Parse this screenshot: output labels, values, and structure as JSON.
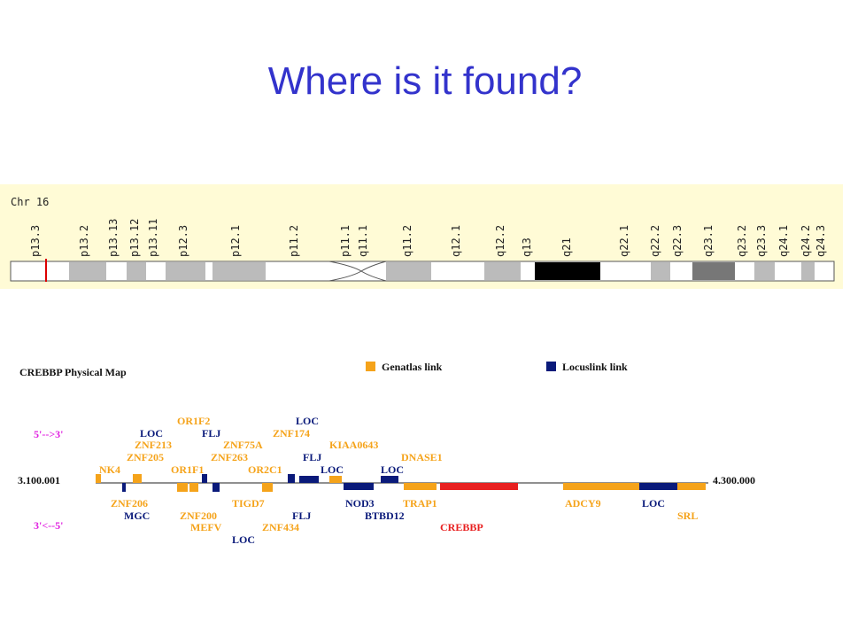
{
  "title": "Where is it found?",
  "ideogram": {
    "chromosome": "Chr 16",
    "bands": [
      "p13.3",
      "p13.2",
      "p13.13",
      "p13.12",
      "p13.11",
      "p12.3",
      "p12.1",
      "p11.2",
      "p11.1",
      "q11.1",
      "q11.2",
      "q12.1",
      "q12.2",
      "q13",
      "q21",
      "q22.1",
      "q22.2",
      "q22.3",
      "q23.1",
      "q23.2",
      "q23.3",
      "q24.1",
      "q24.2",
      "q24.3"
    ]
  },
  "physical_map": {
    "title": "CREBBP Physical Map",
    "legend": [
      {
        "label": "Genatlas link",
        "color": "#f5a31a"
      },
      {
        "label": "Locuslink link",
        "color": "#0a1a7a"
      }
    ],
    "strand_forward": "5'-->3'",
    "strand_reverse": "3'<--5'",
    "start": "3.100.001",
    "end": "4.300.000",
    "genes": [
      {
        "label": "OR1F2",
        "color": "#f5a31a"
      },
      {
        "label": "LOC",
        "color": "#0a1a7a"
      },
      {
        "label": "LOC",
        "color": "#0a1a7a"
      },
      {
        "label": "FLJ",
        "color": "#0a1a7a"
      },
      {
        "label": "ZNF174",
        "color": "#f5a31a"
      },
      {
        "label": "ZNF213",
        "color": "#f5a31a"
      },
      {
        "label": "ZNF75A",
        "color": "#f5a31a"
      },
      {
        "label": "KIAA0643",
        "color": "#f5a31a"
      },
      {
        "label": "ZNF205",
        "color": "#f5a31a"
      },
      {
        "label": "ZNF263",
        "color": "#f5a31a"
      },
      {
        "label": "FLJ",
        "color": "#0a1a7a"
      },
      {
        "label": "DNASE1",
        "color": "#f5a31a"
      },
      {
        "label": "NK4",
        "color": "#f5a31a"
      },
      {
        "label": "OR1F1",
        "color": "#f5a31a"
      },
      {
        "label": "OR2C1",
        "color": "#f5a31a"
      },
      {
        "label": "LOC",
        "color": "#0a1a7a"
      },
      {
        "label": "LOC",
        "color": "#0a1a7a"
      },
      {
        "label": "ZNF206",
        "color": "#f5a31a"
      },
      {
        "label": "TIGD7",
        "color": "#f5a31a"
      },
      {
        "label": "NOD3",
        "color": "#0a1a7a"
      },
      {
        "label": "TRAP1",
        "color": "#f5a31a"
      },
      {
        "label": "ADCY9",
        "color": "#f5a31a"
      },
      {
        "label": "LOC",
        "color": "#0a1a7a"
      },
      {
        "label": "MGC",
        "color": "#0a1a7a"
      },
      {
        "label": "ZNF200",
        "color": "#f5a31a"
      },
      {
        "label": "FLJ",
        "color": "#0a1a7a"
      },
      {
        "label": "BTBD12",
        "color": "#0a1a7a"
      },
      {
        "label": "SRL",
        "color": "#f5a31a"
      },
      {
        "label": "MEFV",
        "color": "#f5a31a"
      },
      {
        "label": "ZNF434",
        "color": "#f5a31a"
      },
      {
        "label": "CREBBP",
        "color": "#e82020"
      },
      {
        "label": "LOC",
        "color": "#0a1a7a"
      }
    ]
  }
}
